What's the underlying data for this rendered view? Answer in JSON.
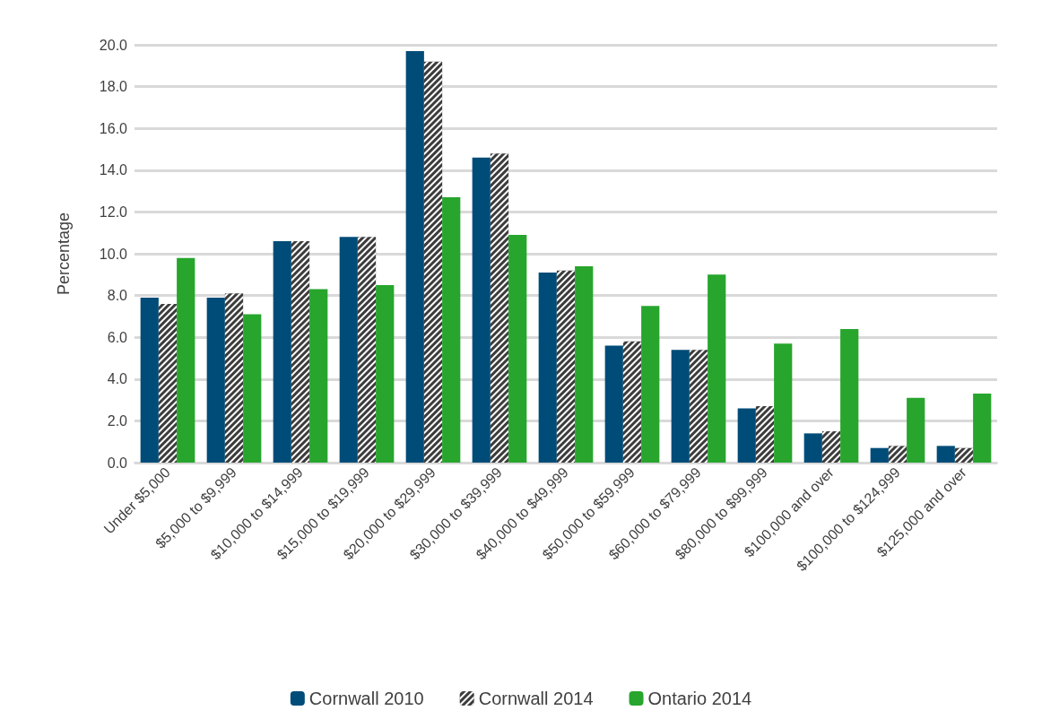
{
  "chart_data": {
    "type": "bar",
    "ylabel": "Percentage",
    "categories": [
      "Under $5,000",
      "$5,000 to $9,999",
      "$10,000 to $14,999",
      "$15,000 to $19,999",
      "$20,000 to $29,999",
      "$30,000 to $39,999",
      "$40,000 to $49,999",
      "$50,000 to $59,999",
      "$60,000 to $79,999",
      "$80,000 to $99,999",
      "$100,000 and over",
      "$100,000 to $124,999",
      "$125,000 and over"
    ],
    "series": [
      {
        "name": "Cornwall 2010",
        "color": "#004c78",
        "values": [
          7.9,
          7.9,
          10.6,
          10.8,
          19.7,
          14.6,
          9.1,
          5.6,
          5.4,
          2.6,
          1.4,
          0.7,
          0.8
        ]
      },
      {
        "name": "Cornwall 2014",
        "color": "#3c3c3c",
        "values": [
          7.6,
          8.1,
          10.6,
          10.8,
          19.2,
          14.8,
          9.2,
          5.8,
          5.4,
          2.7,
          1.5,
          0.8,
          0.7
        ]
      },
      {
        "name": "Ontario 2014",
        "color": "#27a52d",
        "values": [
          9.8,
          7.1,
          8.3,
          8.5,
          12.7,
          10.9,
          9.4,
          7.5,
          9.0,
          5.7,
          6.4,
          3.1,
          3.3
        ]
      }
    ],
    "ylim": [
      0,
      20
    ],
    "yticks": [
      {
        "value": 0,
        "label": "0.0"
      },
      {
        "value": 2,
        "label": "2.0"
      },
      {
        "value": 4,
        "label": "4.0"
      },
      {
        "value": 6,
        "label": "6.0"
      },
      {
        "value": 8,
        "label": "8.0"
      },
      {
        "value": 10,
        "label": "10.0"
      },
      {
        "value": 12,
        "label": "12.0"
      },
      {
        "value": 14,
        "label": "14.0"
      },
      {
        "value": 16,
        "label": "16.0"
      },
      {
        "value": 18,
        "label": "18.0"
      },
      {
        "value": 20,
        "label": "20.0"
      }
    ],
    "grid": "y",
    "legend": "bottom"
  }
}
